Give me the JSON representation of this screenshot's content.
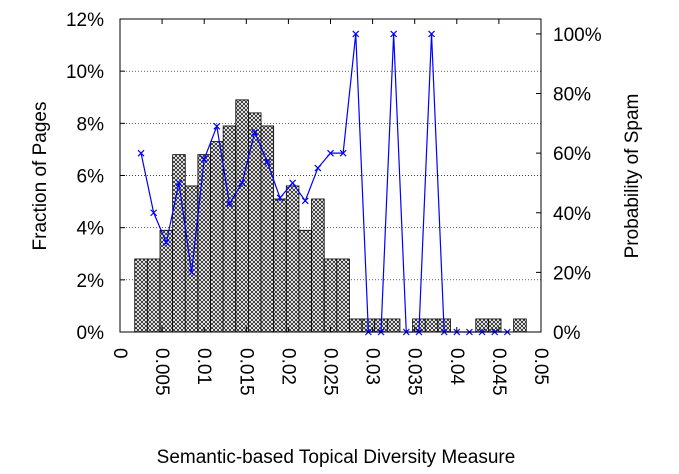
{
  "chart_data": {
    "type": "bar",
    "xlabel": "Semantic-based Topical Diversity Measure",
    "ylabel_left": "Fraction of Pages",
    "ylabel_right": "Probability of Spam",
    "xlim": [
      0,
      0.05
    ],
    "ylim_left": [
      0,
      12
    ],
    "ylim_right": [
      0,
      105
    ],
    "x_ticks": [
      "0",
      "0.005",
      "0.01",
      "0.015",
      "0.02",
      "0.025",
      "0.03",
      "0.035",
      "0.04",
      "0.045",
      "0.05"
    ],
    "y_left_ticks": [
      "0%",
      "2%",
      "4%",
      "6%",
      "8%",
      "10%",
      "12%"
    ],
    "y_right_ticks": [
      "0%",
      "20%",
      "40%",
      "60%",
      "80%",
      "100%"
    ],
    "grid": "horizontal dotted",
    "bar_width": 0.0015,
    "bar_series": {
      "name": "Fraction of Pages",
      "x": [
        0.0025,
        0.004,
        0.0055,
        0.007,
        0.0085,
        0.01,
        0.0115,
        0.013,
        0.0145,
        0.016,
        0.0175,
        0.019,
        0.0205,
        0.022,
        0.0235,
        0.025,
        0.0265,
        0.028,
        0.0295,
        0.031,
        0.0325,
        0.034,
        0.0355,
        0.037,
        0.0385,
        0.04,
        0.0415,
        0.043,
        0.0445,
        0.046,
        0.0475
      ],
      "values": [
        2.8,
        2.8,
        3.9,
        6.8,
        5.6,
        6.8,
        7.3,
        7.9,
        8.9,
        8.4,
        7.9,
        5.1,
        5.6,
        3.9,
        5.1,
        2.8,
        2.8,
        0.5,
        0.5,
        0.5,
        0.5,
        0,
        0.5,
        0.5,
        0.5,
        0,
        0,
        0.5,
        0.5,
        0,
        0.5
      ]
    },
    "line_series": {
      "name": "Probability of Spam",
      "color": "#0000ff",
      "x": [
        0.0025,
        0.004,
        0.0055,
        0.007,
        0.0085,
        0.01,
        0.0115,
        0.013,
        0.0145,
        0.016,
        0.0175,
        0.019,
        0.0205,
        0.022,
        0.0235,
        0.025,
        0.0265,
        0.028,
        0.0295,
        0.031,
        0.0325,
        0.034,
        0.0355,
        0.037,
        0.0385,
        0.04,
        0.0415,
        0.043,
        0.0445,
        0.046
      ],
      "values": [
        60,
        40,
        30,
        50,
        20,
        58,
        69,
        43,
        50,
        67,
        57,
        45,
        50,
        44,
        55,
        60,
        60,
        100,
        0,
        0,
        100,
        0,
        0,
        100,
        0,
        0,
        0,
        0,
        0,
        0
      ]
    }
  }
}
